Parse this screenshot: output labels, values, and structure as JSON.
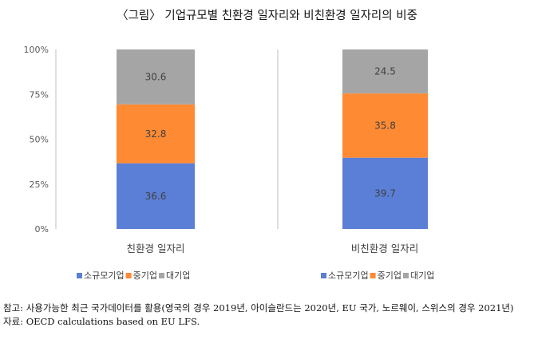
{
  "title": "〈그림〉 기업규모별 친환경 일자리와 비친환경 일자리의 비중",
  "chart_data": [
    {
      "type": "bar",
      "stacked": true,
      "categories": [
        "친환경 일자리"
      ],
      "series": [
        {
          "name": "소규모기업",
          "values": [
            36.6
          ],
          "color": "#5B7FD6"
        },
        {
          "name": "중기업",
          "values": [
            32.8
          ],
          "color": "#FF8A34"
        },
        {
          "name": "대기업",
          "values": [
            30.6
          ],
          "color": "#A5A5A5"
        }
      ],
      "ylim": [
        0,
        100
      ],
      "yticks": [
        "0%",
        "25%",
        "50%",
        "75%",
        "100%"
      ],
      "legend": "bottom"
    },
    {
      "type": "bar",
      "stacked": true,
      "categories": [
        "비친환경 일자리"
      ],
      "series": [
        {
          "name": "소규모기업",
          "values": [
            39.7
          ],
          "color": "#5B7FD6"
        },
        {
          "name": "중기업",
          "values": [
            35.8
          ],
          "color": "#FF8A34"
        },
        {
          "name": "대기업",
          "values": [
            24.5
          ],
          "color": "#A5A5A5"
        }
      ],
      "ylim": [
        0,
        100
      ],
      "legend": "bottom"
    }
  ],
  "notes": {
    "line1": "참고: 사용가능한 최근 국가데이터를 활용(영국의 경우 2019년, 아이슬란드는 2020년, EU 국가, 노르웨이, 스위스의 경우 2021년)",
    "line2": "자료: OECD calculations based on EU LFS."
  }
}
